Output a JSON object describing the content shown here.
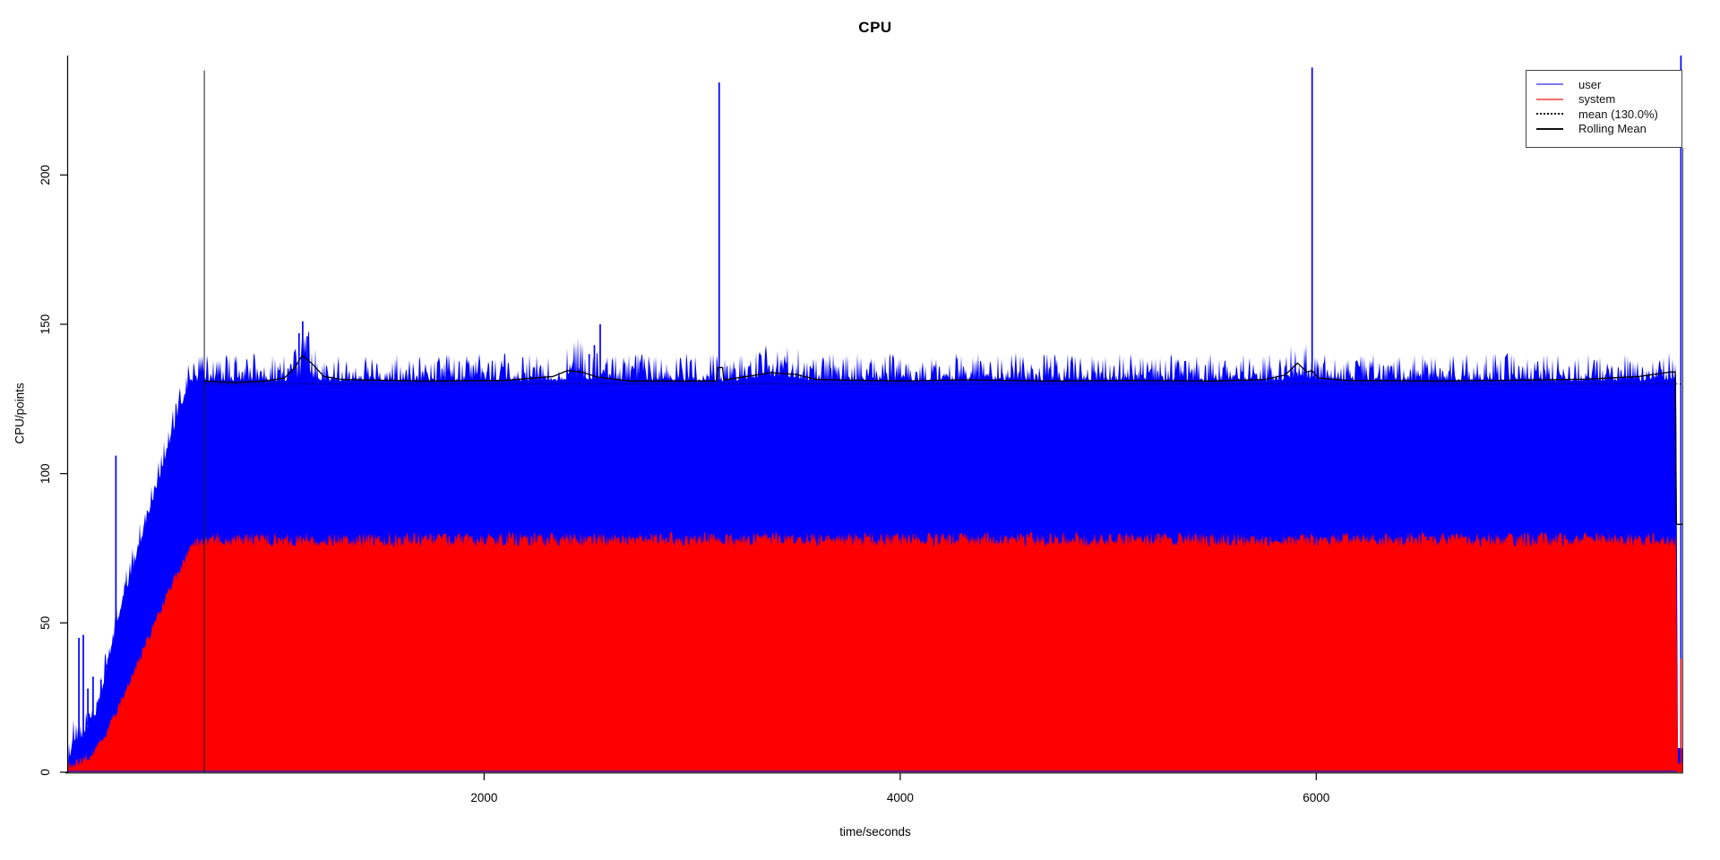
{
  "page": {
    "background": "#ffffff"
  },
  "chart_data": {
    "type": "area",
    "title": "CPU",
    "xlabel": "time/seconds",
    "ylabel": "CPU/points",
    "xlim": [
      0,
      7760
    ],
    "ylim": [
      0,
      240
    ],
    "xticks": [
      2000,
      4000,
      6000
    ],
    "yticks": [
      0,
      50,
      100,
      150,
      200
    ],
    "grid": false,
    "stacked": true,
    "mean_value": 130.0,
    "legend": {
      "position": "top-right",
      "entries": [
        {
          "label": "user",
          "color": "#7b7bf2",
          "dash": "solid"
        },
        {
          "label": "system",
          "color": "#f56f6f",
          "dash": "solid"
        },
        {
          "label": "mean (130.0%)",
          "color": "#111111",
          "dash": "dotted"
        },
        {
          "label": "Rolling Mean",
          "color": "#111111",
          "dash": "solid"
        }
      ]
    },
    "series_colors": {
      "user": "#0000ff",
      "system": "#ff0000",
      "rolling_mean": "#000000"
    },
    "user_total_keypoints": [
      [
        0,
        4
      ],
      [
        25,
        12
      ],
      [
        50,
        10
      ],
      [
        75,
        14
      ],
      [
        100,
        17
      ],
      [
        130,
        20
      ],
      [
        160,
        28
      ],
      [
        200,
        40
      ],
      [
        230,
        50
      ],
      [
        280,
        62
      ],
      [
        330,
        74
      ],
      [
        380,
        86
      ],
      [
        430,
        98
      ],
      [
        480,
        110
      ],
      [
        530,
        121
      ],
      [
        560,
        127
      ],
      [
        585,
        132
      ],
      [
        610,
        133
      ],
      [
        7728,
        133
      ],
      [
        7733,
        110
      ],
      [
        7736,
        8
      ],
      [
        7760,
        8
      ]
    ],
    "system_keypoints": [
      [
        0,
        2
      ],
      [
        75,
        4
      ],
      [
        130,
        7
      ],
      [
        160,
        10
      ],
      [
        200,
        15
      ],
      [
        230,
        20
      ],
      [
        280,
        28
      ],
      [
        330,
        36
      ],
      [
        380,
        44
      ],
      [
        430,
        52
      ],
      [
        480,
        60
      ],
      [
        530,
        67
      ],
      [
        560,
        71
      ],
      [
        585,
        75
      ],
      [
        610,
        77
      ],
      [
        640,
        78
      ],
      [
        7728,
        78
      ],
      [
        7733,
        60
      ],
      [
        7736,
        3
      ],
      [
        7760,
        3
      ]
    ],
    "user_noise_amp": [
      [
        0,
        7
      ],
      [
        585,
        8
      ],
      [
        610,
        9
      ],
      [
        7733,
        9
      ],
      [
        7736,
        1
      ],
      [
        7760,
        1
      ]
    ],
    "system_noise_amp": [
      [
        0,
        3
      ],
      [
        600,
        4
      ],
      [
        640,
        5
      ],
      [
        7733,
        5
      ],
      [
        7736,
        1
      ],
      [
        7760,
        1
      ]
    ],
    "noise_bumps_user": [
      {
        "t0": 1060,
        "t1": 1220,
        "base_add": 3,
        "amp_add": 8
      },
      {
        "t0": 2360,
        "t1": 2520,
        "base_add": 2,
        "amp_add": 5
      },
      {
        "t0": 3240,
        "t1": 3560,
        "base_add": 2,
        "amp_add": 2
      },
      {
        "t0": 5840,
        "t1": 6000,
        "base_add": 2,
        "amp_add": 4
      },
      {
        "t0": 7560,
        "t1": 7728,
        "base_add": 1,
        "amp_add": 2
      }
    ],
    "spikes_user": [
      [
        52,
        45
      ],
      [
        73,
        46
      ],
      [
        95,
        28
      ],
      [
        120,
        32
      ],
      [
        158,
        31
      ],
      [
        185,
        36
      ],
      [
        230,
        106
      ],
      [
        1110,
        147
      ],
      [
        1128,
        151
      ],
      [
        1150,
        146
      ],
      [
        2505,
        140
      ],
      [
        2530,
        143
      ],
      [
        2558,
        150
      ],
      [
        3130,
        231
      ],
      [
        5980,
        236
      ],
      [
        7753,
        240
      ]
    ],
    "spikes_system": [
      [
        7753,
        38
      ]
    ],
    "rolling_mean_keypoints": [
      [
        655,
        131
      ],
      [
        800,
        130.5
      ],
      [
        950,
        131
      ],
      [
        1040,
        132
      ],
      [
        1090,
        135.5
      ],
      [
        1125,
        139.5
      ],
      [
        1170,
        137
      ],
      [
        1230,
        132.5
      ],
      [
        1320,
        131.5
      ],
      [
        1700,
        131
      ],
      [
        2100,
        131.2
      ],
      [
        2330,
        132.5
      ],
      [
        2400,
        134.5
      ],
      [
        2470,
        134
      ],
      [
        2545,
        132.3
      ],
      [
        2700,
        131
      ],
      [
        3000,
        131
      ],
      [
        3118,
        131
      ],
      [
        3124,
        135.5
      ],
      [
        3146,
        135.5
      ],
      [
        3152,
        131.3
      ],
      [
        3260,
        132.5
      ],
      [
        3380,
        133.8
      ],
      [
        3500,
        133.2
      ],
      [
        3600,
        131.5
      ],
      [
        4000,
        131
      ],
      [
        4300,
        131.4
      ],
      [
        4700,
        131
      ],
      [
        5100,
        131.2
      ],
      [
        5500,
        131
      ],
      [
        5750,
        131.5
      ],
      [
        5850,
        133
      ],
      [
        5910,
        137
      ],
      [
        5955,
        134
      ],
      [
        5980,
        134.5
      ],
      [
        6010,
        132
      ],
      [
        6150,
        131.2
      ],
      [
        6600,
        131
      ],
      [
        7000,
        131.3
      ],
      [
        7300,
        131.6
      ],
      [
        7550,
        132.5
      ],
      [
        7650,
        133.5
      ],
      [
        7700,
        134
      ],
      [
        7726,
        134
      ],
      [
        7731,
        83
      ],
      [
        7760,
        83
      ]
    ],
    "rolling_mean_start_line": {
      "t": 655,
      "v0": 0,
      "v1": 235
    },
    "mean_line": {
      "t0": 655,
      "t1": 7760,
      "v": 130
    }
  }
}
